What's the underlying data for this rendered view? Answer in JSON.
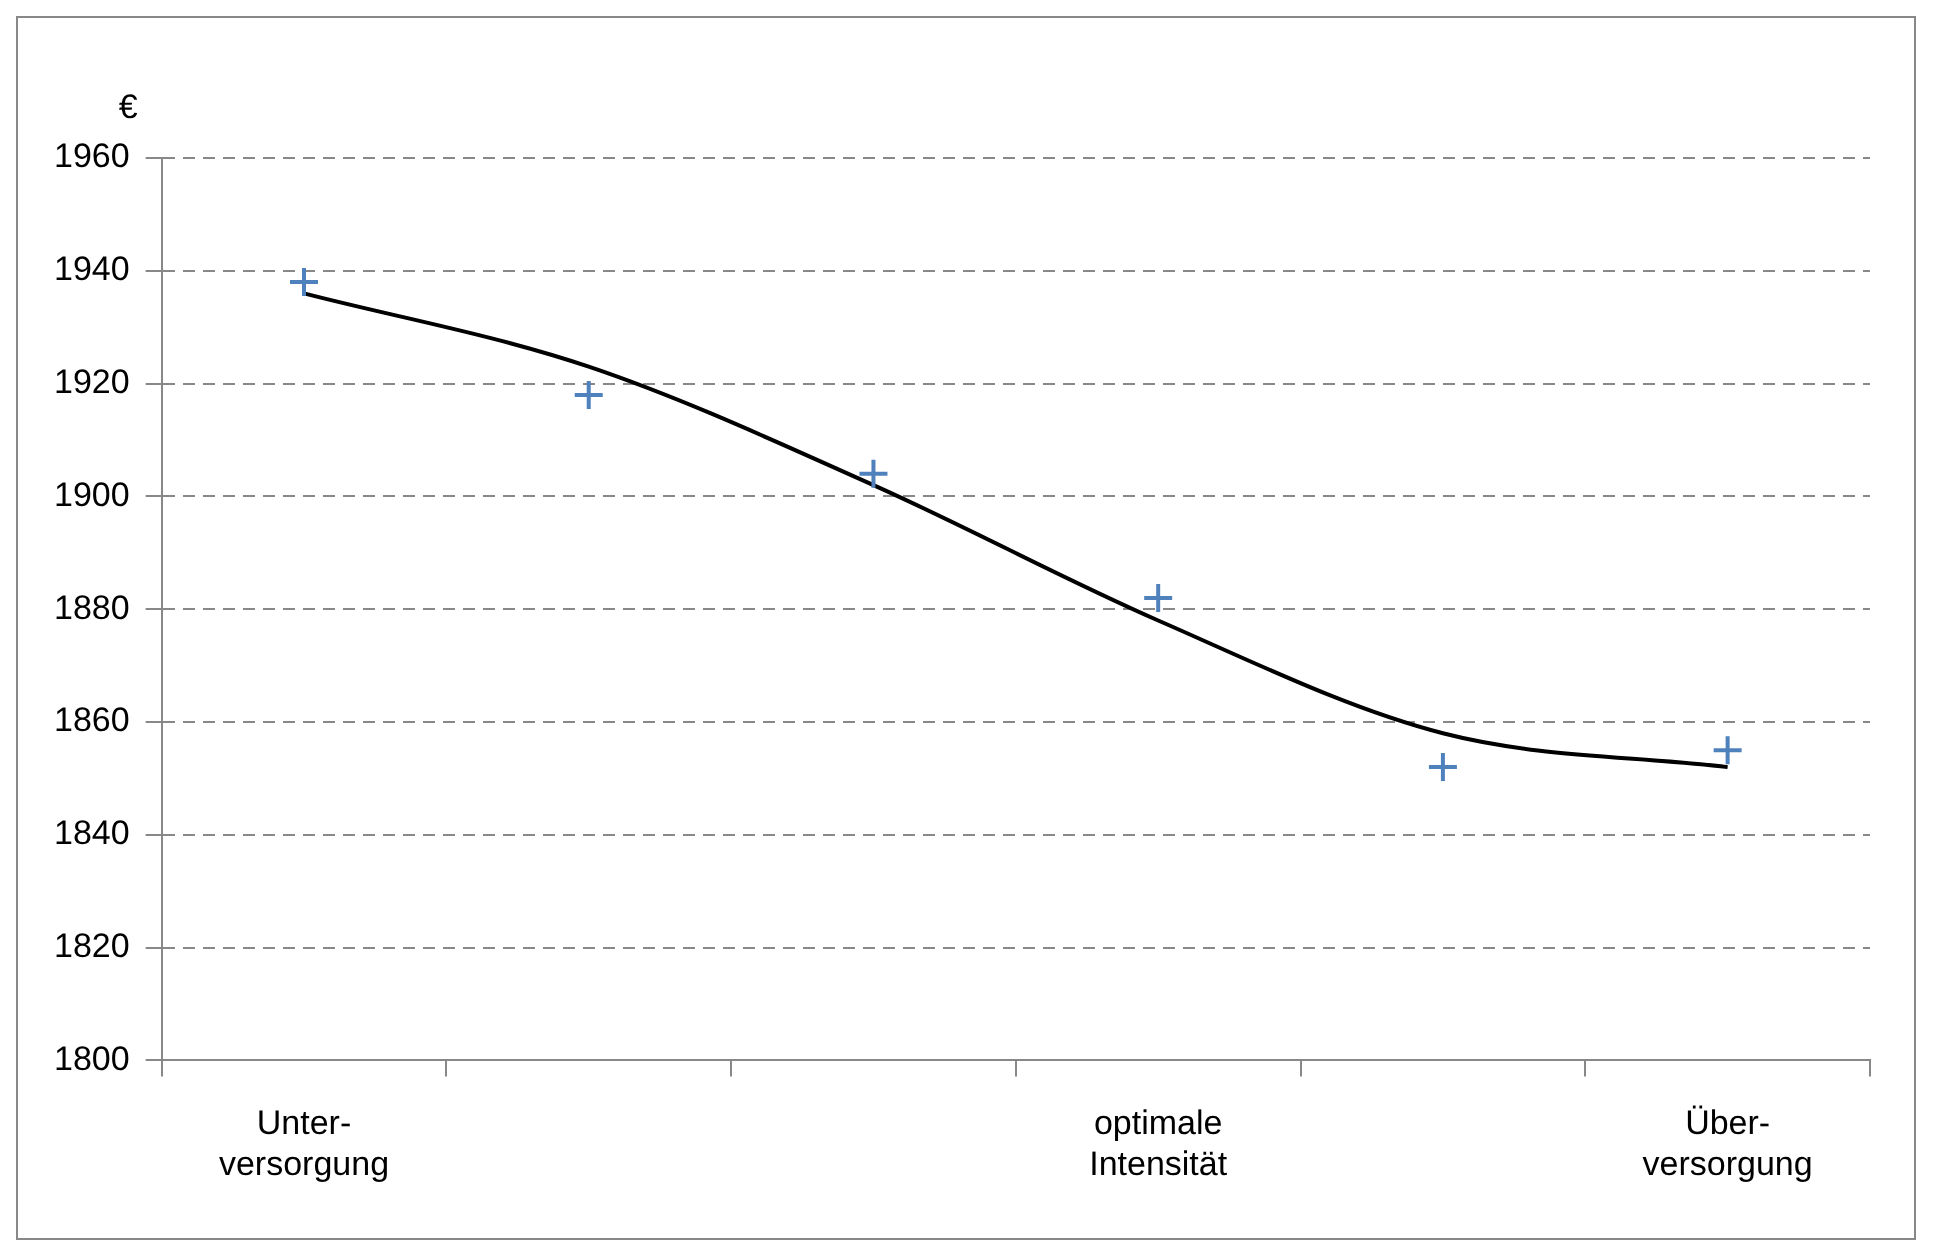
{
  "chart_data": {
    "type": "scatter",
    "ylabel": "€",
    "categories": [
      "Unter-\nversorgung",
      null,
      null,
      "optimale\nIntensität",
      null,
      "Über-\nversorgung"
    ],
    "series": [
      {
        "color": "#4f81bd",
        "marker": "cross",
        "values": [
          1938,
          1918,
          1904,
          1882,
          1852,
          1855
        ]
      },
      {
        "type": "line",
        "color": "#000000",
        "values": [
          1936,
          1923,
          1902,
          1878,
          1858,
          1852
        ]
      }
    ],
    "ylim": [
      1800,
      1960
    ],
    "yticks": [
      1800,
      1820,
      1840,
      1860,
      1880,
      1900,
      1920,
      1940,
      1960
    ],
    "grid": "y",
    "legend": false
  }
}
